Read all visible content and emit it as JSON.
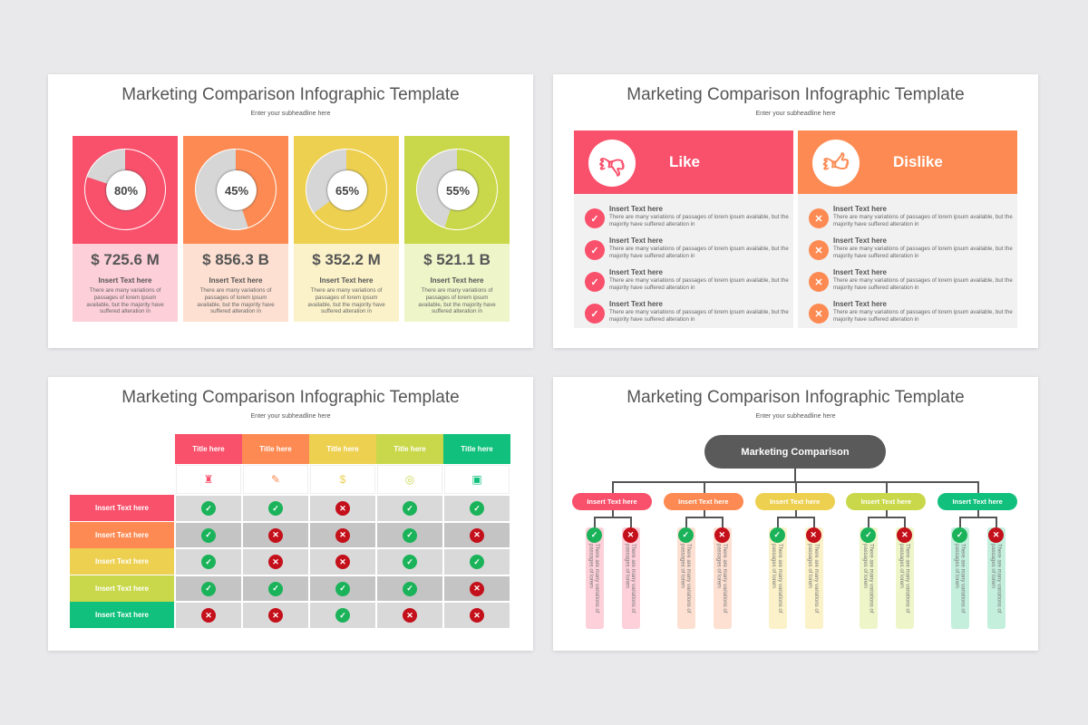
{
  "colors": {
    "red": "#f9506b",
    "orange": "#fd8a52",
    "yellow": "#edd050",
    "lime": "#c9d84a",
    "green": "#10c07c",
    "check": "#1bb35a",
    "cross": "#c4101a"
  },
  "slides": {
    "title": "Marketing Comparison Infographic Template",
    "subtitle": "Enter your subheadline here"
  },
  "slide1": {
    "cards": [
      {
        "percent": 80,
        "percent_label": "80%",
        "amount": "$ 725.6 M",
        "heading": "Insert Text here",
        "body": "There are many variations of passages of lorem ipsum available, but the majority have suffered  alteration in",
        "color": "#f9506b",
        "light": "#fdcfd9"
      },
      {
        "percent": 45,
        "percent_label": "45%",
        "amount": "$ 856.3 B",
        "heading": "Insert Text here",
        "body": "There are many variations of passages of lorem ipsum available, but the majority have suffered  alteration in",
        "color": "#fd8a52",
        "light": "#fde0d1"
      },
      {
        "percent": 65,
        "percent_label": "65%",
        "amount": "$ 352.2 M",
        "heading": "Insert Text here",
        "body": "There are many variations of passages of lorem ipsum available, but the majority have suffered  alteration in",
        "color": "#edd050",
        "light": "#fbf2c9"
      },
      {
        "percent": 55,
        "percent_label": "55%",
        "amount": "$ 521.1 B",
        "heading": "Insert Text here",
        "body": "There are many variations of passages of lorem ipsum available, but the majority have suffered  alteration in",
        "color": "#c9d84a",
        "light": "#eef5c9"
      }
    ]
  },
  "slide2": {
    "panels": [
      {
        "label": "Like",
        "icon": "thumbs-down-icon",
        "color": "#f9506b",
        "mark": "check",
        "items": [
          {
            "heading": "Insert Text here",
            "body": "There are many variations of passages of lorem ipsum available, but the majority have suffered  alteration in"
          },
          {
            "heading": "Insert Text here",
            "body": "There are many variations of passages of lorem ipsum available, but the majority have suffered  alteration in"
          },
          {
            "heading": "Insert Text here",
            "body": "There are many variations of passages of lorem ipsum available, but the majority have suffered  alteration in"
          },
          {
            "heading": "Insert Text here",
            "body": "There are many variations of passages of lorem ipsum available, but the majority have suffered  alteration in"
          }
        ]
      },
      {
        "label": "Dislike",
        "icon": "thumbs-up-icon",
        "color": "#fd8a52",
        "mark": "cross",
        "items": [
          {
            "heading": "Insert Text here",
            "body": "There are many variations of passages of lorem ipsum available, but the majority have suffered  alteration in"
          },
          {
            "heading": "Insert Text here",
            "body": "There are many variations of passages of lorem ipsum available, but the majority have suffered  alteration in"
          },
          {
            "heading": "Insert Text here",
            "body": "There are many variations of passages of lorem ipsum available, but the majority have suffered  alteration in"
          },
          {
            "heading": "Insert Text here",
            "body": "There are many variations of passages of lorem ipsum available, but the majority have suffered  alteration in"
          }
        ]
      }
    ]
  },
  "slide3": {
    "columns": [
      {
        "title": "Title here",
        "icon": "podium-icon",
        "color": "#f9506b"
      },
      {
        "title": "Title here",
        "icon": "document-pen-icon",
        "color": "#fd8a52"
      },
      {
        "title": "Title here",
        "icon": "money-hand-icon",
        "color": "#edd050"
      },
      {
        "title": "Title here",
        "icon": "target-icon",
        "color": "#c9d84a"
      },
      {
        "title": "Title here",
        "icon": "presentation-board-icon",
        "color": "#10c07c"
      }
    ],
    "rows": [
      {
        "label": "Insert Text here",
        "color": "#f9506b",
        "values": [
          true,
          true,
          false,
          true,
          true
        ]
      },
      {
        "label": "Insert Text here",
        "color": "#fd8a52",
        "values": [
          true,
          false,
          false,
          true,
          false
        ]
      },
      {
        "label": "Insert Text here",
        "color": "#edd050",
        "values": [
          true,
          false,
          false,
          true,
          true
        ]
      },
      {
        "label": "Insert Text here",
        "color": "#c9d84a",
        "values": [
          true,
          true,
          true,
          true,
          false
        ]
      },
      {
        "label": "Insert Text here",
        "color": "#10c07c",
        "values": [
          false,
          false,
          true,
          false,
          false
        ]
      }
    ]
  },
  "slide4": {
    "root": "Marketing Comparison",
    "branches": [
      {
        "label": "Insert Text here",
        "color": "#f9506b",
        "light": "#fdd0da",
        "pro": "There are many variations of passages of lorem",
        "con": "There are many variations of passages of lorem"
      },
      {
        "label": "Insert Text here",
        "color": "#fd8a52",
        "light": "#fde0d2",
        "pro": "There are many variations of passages of lorem",
        "con": "There are many variations of passages of lorem"
      },
      {
        "label": "Insert Text here",
        "color": "#edd050",
        "light": "#fbf2c9",
        "pro": "There are many variations of passages of lorem",
        "con": "There are many variations of passages of lorem"
      },
      {
        "label": "Insert Text here",
        "color": "#c9d84a",
        "light": "#eef5c9",
        "pro": "There are many variations of passages of lorem",
        "con": "There are many variations of passages of lorem"
      },
      {
        "label": "Insert Text here",
        "color": "#10c07c",
        "light": "#c3efdc",
        "pro": "There are many variations of passages of lorem",
        "con": "There are many variations of passages of lorem"
      }
    ]
  }
}
